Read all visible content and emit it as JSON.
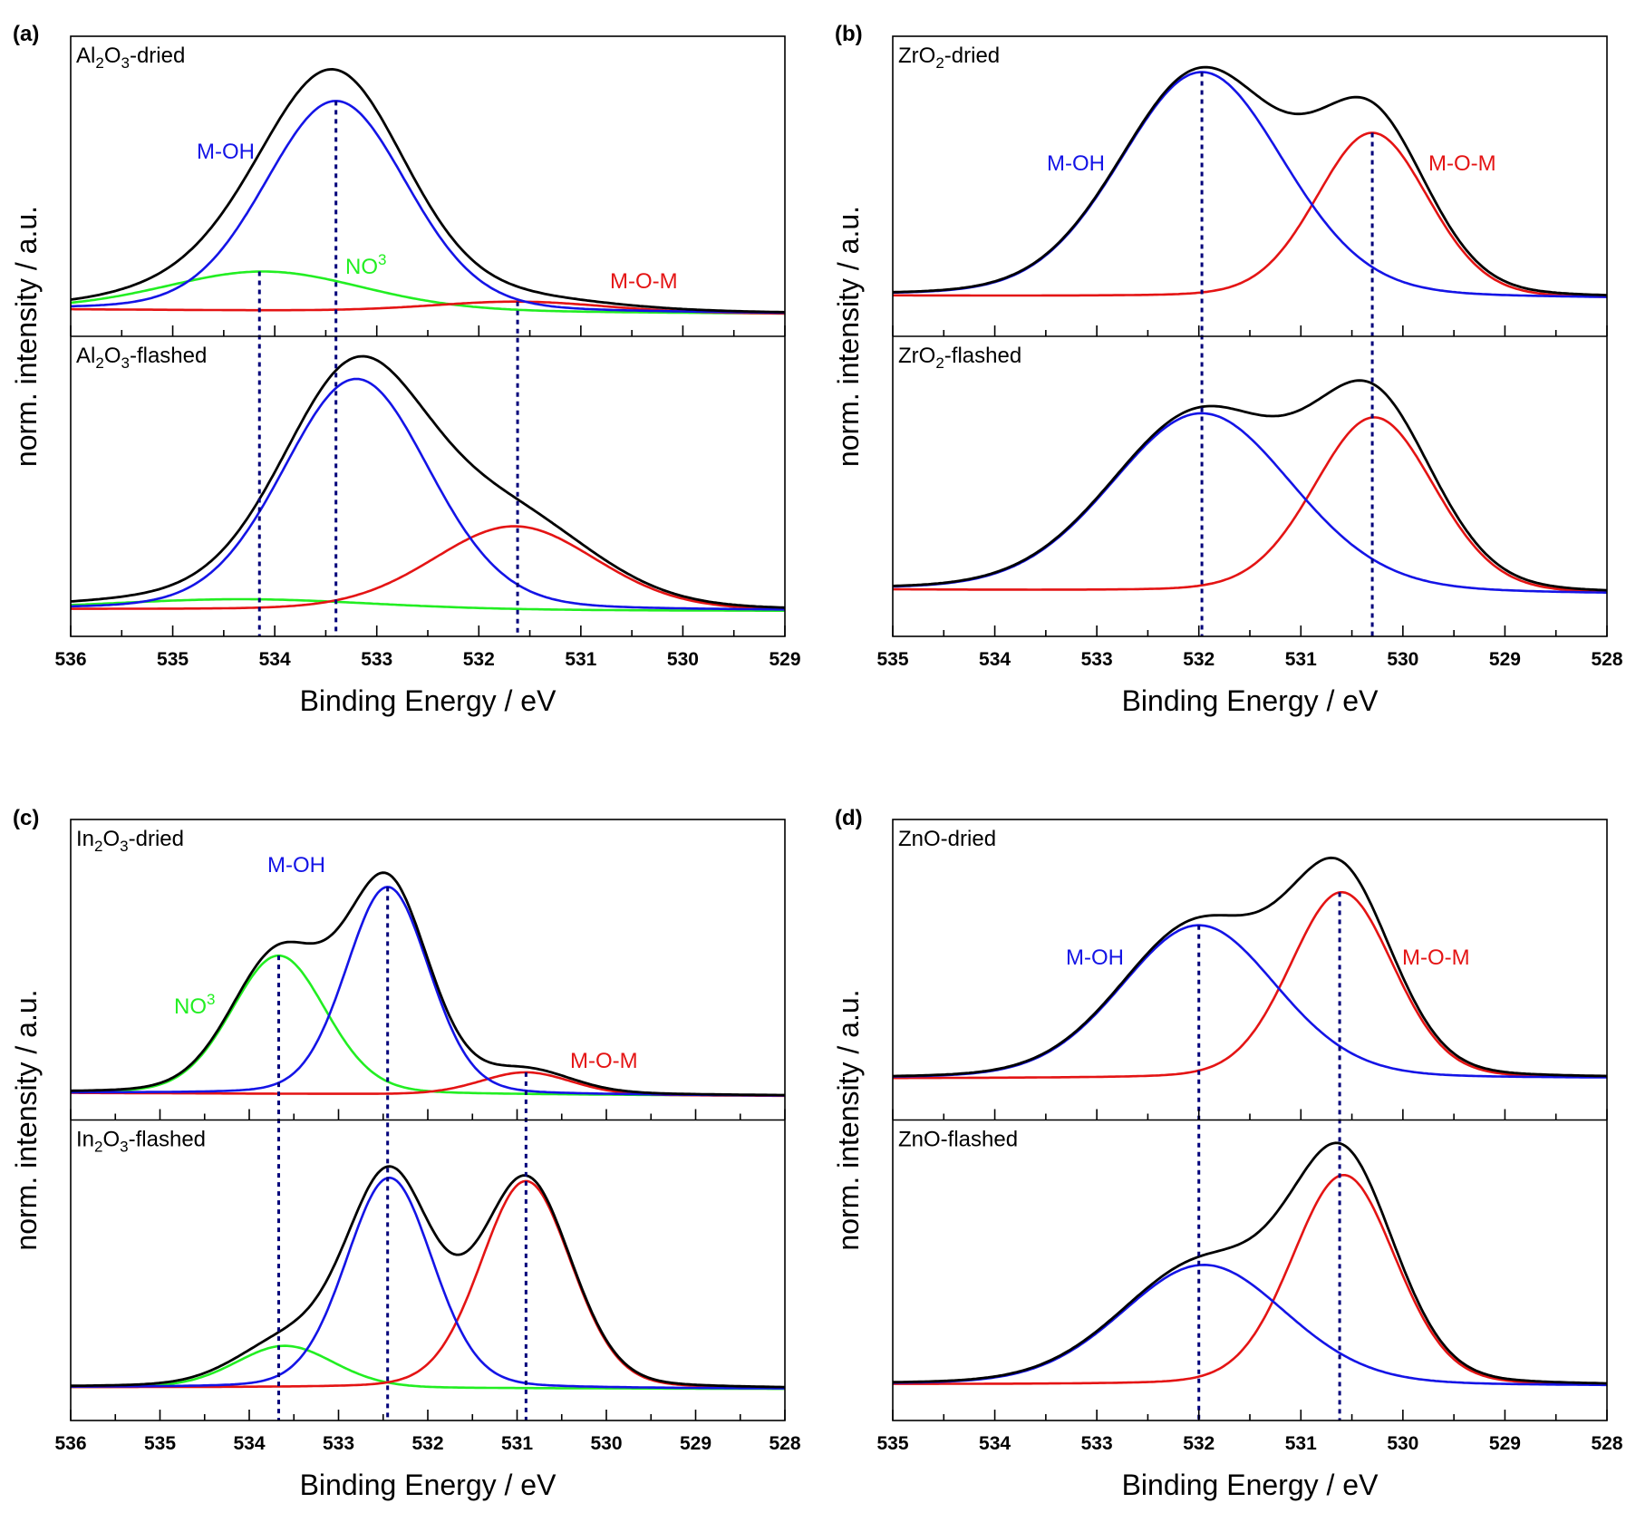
{
  "chart_data": [
    {
      "panel": "(a)",
      "type": "line",
      "xlabel": "Binding Energy / eV",
      "ylabel": "norm. intensity / a.u.",
      "xlim": [
        536,
        529
      ],
      "xticks": [
        536,
        535,
        534,
        533,
        532,
        531,
        530,
        529
      ],
      "dashed_lines": [
        534.15,
        533.4,
        531.62
      ],
      "subplots": [
        {
          "label": "Al2O3-dried",
          "baseline": [
            0.09,
            0.075
          ],
          "components": [
            {
              "name": "M-OH",
              "color": "#1414e6",
              "center": 533.4,
              "fwhm": 1.65,
              "height": 0.7
            },
            {
              "name": "NO3",
              "color": "#22ee22",
              "center": 534.1,
              "fwhm": 2.3,
              "height": 0.13
            },
            {
              "name": "M-O-M",
              "color": "#e41414",
              "center": 531.6,
              "fwhm": 2.0,
              "height": 0.035
            }
          ]
        },
        {
          "label": "Al2O3-flashed",
          "baseline": [
            0.09,
            0.085
          ],
          "components": [
            {
              "name": "M-OH",
              "color": "#1414e6",
              "center": 533.2,
              "fwhm": 1.7,
              "height": 0.77
            },
            {
              "name": "NO3",
              "color": "#22ee22",
              "center": 534.3,
              "fwhm": 3.0,
              "height": 0.035
            },
            {
              "name": "M-O-M",
              "color": "#e41414",
              "center": 531.65,
              "fwhm": 1.9,
              "height": 0.28
            }
          ]
        }
      ]
    },
    {
      "panel": "(b)",
      "type": "line",
      "xlabel": "Binding Energy / eV",
      "ylabel": "norm. intensity / a.u.",
      "xlim": [
        535,
        528
      ],
      "xticks": [
        535,
        534,
        533,
        532,
        531,
        530,
        529,
        528
      ],
      "dashed_lines": [
        531.97,
        530.3
      ],
      "subplots": [
        {
          "label": "ZrO2-dried",
          "baseline": [
            0.135,
            0.125
          ],
          "components": [
            {
              "name": "M-OH",
              "color": "#1414e6",
              "center": 531.97,
              "fwhm": 1.9,
              "height": 0.75
            },
            {
              "name": "M-O-M",
              "color": "#e41414",
              "center": 530.3,
              "fwhm": 1.3,
              "height": 0.55
            }
          ]
        },
        {
          "label": "ZrO2-flashed",
          "baseline": [
            0.155,
            0.14
          ],
          "components": [
            {
              "name": "M-OH",
              "color": "#1414e6",
              "center": 531.97,
              "fwhm": 2.1,
              "height": 0.595
            },
            {
              "name": "M-O-M",
              "color": "#e41414",
              "center": 530.28,
              "fwhm": 1.4,
              "height": 0.585
            }
          ]
        }
      ]
    },
    {
      "panel": "(c)",
      "type": "line",
      "xlabel": "Binding Energy / eV",
      "ylabel": "norm. intensity / a.u.",
      "xlim": [
        536,
        528
      ],
      "xticks": [
        536,
        535,
        534,
        533,
        532,
        531,
        530,
        529,
        528
      ],
      "dashed_lines": [
        533.67,
        532.45,
        530.9
      ],
      "subplots": [
        {
          "label": "In2O3-dried",
          "baseline": [
            0.09,
            0.08
          ],
          "components": [
            {
              "name": "M-OH",
              "color": "#1414e6",
              "center": 532.45,
              "fwhm": 1.1,
              "height": 0.69
            },
            {
              "name": "NO3",
              "color": "#22ee22",
              "center": 533.67,
              "fwhm": 1.25,
              "height": 0.46
            },
            {
              "name": "M-O-M",
              "color": "#e41414",
              "center": 530.9,
              "fwhm": 1.2,
              "height": 0.075
            }
          ]
        },
        {
          "label": "In2O3-flashed",
          "baseline": [
            0.11,
            0.105
          ],
          "components": [
            {
              "name": "M-OH",
              "color": "#1414e6",
              "center": 532.43,
              "fwhm": 1.15,
              "height": 0.7
            },
            {
              "name": "NO3",
              "color": "#22ee22",
              "center": 533.6,
              "fwhm": 1.3,
              "height": 0.14
            },
            {
              "name": "M-O-M",
              "color": "#e41414",
              "center": 530.9,
              "fwhm": 1.2,
              "height": 0.69
            }
          ]
        }
      ]
    },
    {
      "panel": "(d)",
      "type": "line",
      "xlabel": "Binding Energy / eV",
      "ylabel": "norm. intensity / a.u.",
      "xlim": [
        535,
        528
      ],
      "xticks": [
        535,
        534,
        533,
        532,
        531,
        530,
        529,
        528
      ],
      "dashed_lines": [
        532.0,
        530.62
      ],
      "subplots": [
        {
          "label": "ZnO-dried",
          "baseline": [
            0.138,
            0.138
          ],
          "components": [
            {
              "name": "M-OH",
              "color": "#1414e6",
              "center": 532.0,
              "fwhm": 1.8,
              "height": 0.51
            },
            {
              "name": "M-O-M",
              "color": "#e41414",
              "center": 530.6,
              "fwhm": 1.2,
              "height": 0.62
            }
          ]
        },
        {
          "label": "ZnO-flashed",
          "baseline": [
            0.12,
            0.115
          ],
          "components": [
            {
              "name": "M-OH",
              "color": "#1414e6",
              "center": 531.95,
              "fwhm": 1.9,
              "height": 0.4
            },
            {
              "name": "M-O-M",
              "color": "#e41414",
              "center": 530.58,
              "fwhm": 1.2,
              "height": 0.7
            }
          ]
        }
      ]
    }
  ],
  "colors": {
    "envelope": "#000000",
    "dashed": "#00007a"
  }
}
